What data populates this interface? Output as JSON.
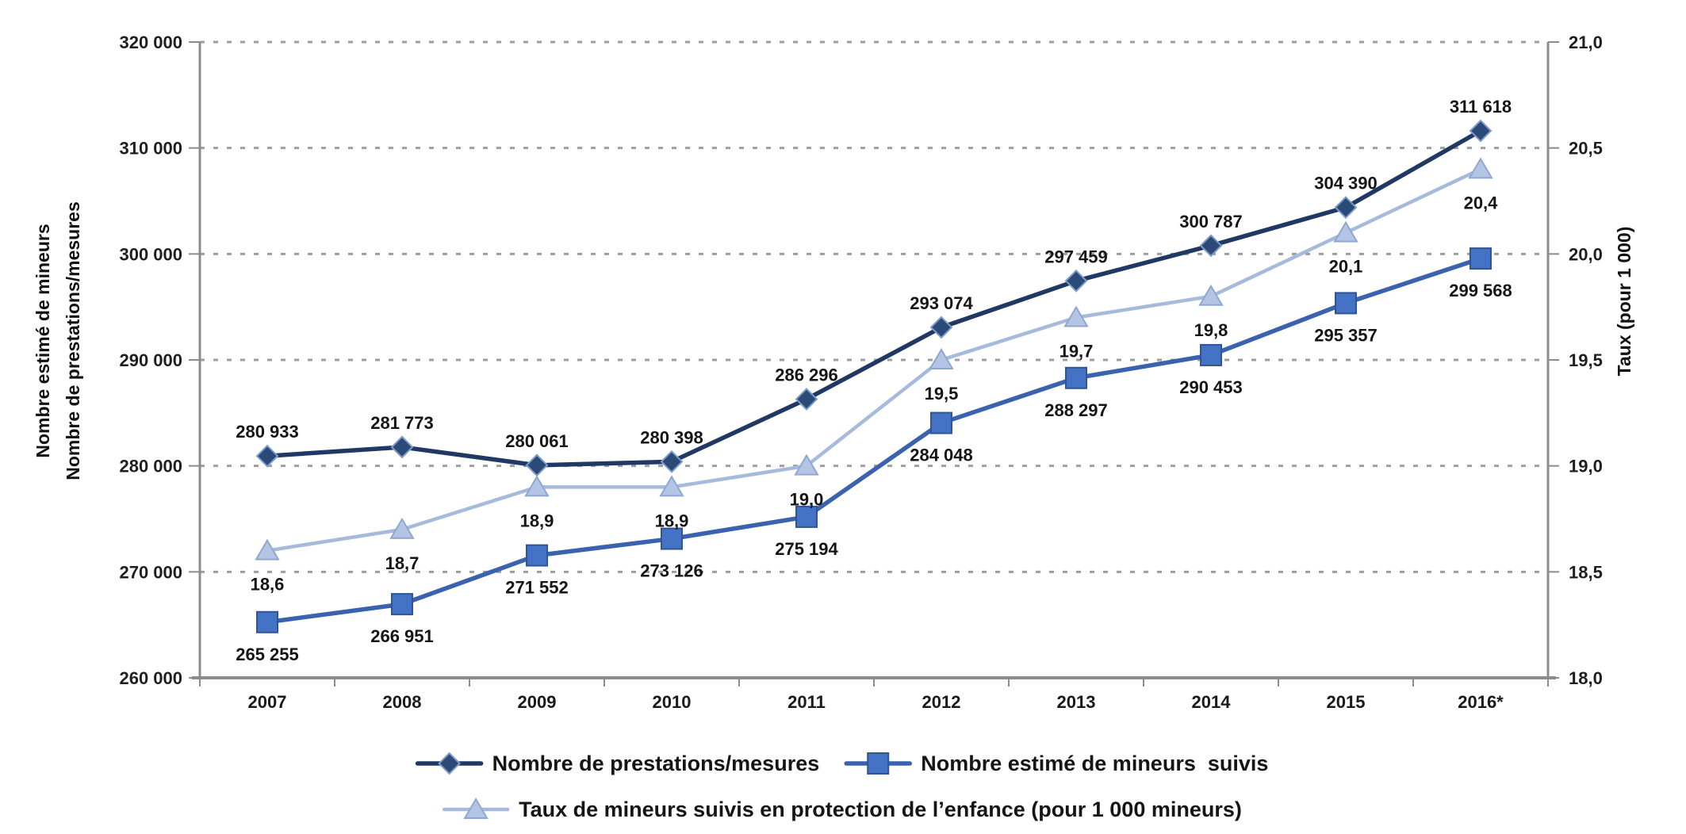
{
  "chart_data": {
    "type": "line",
    "categories": [
      "2007",
      "2008",
      "2009",
      "2010",
      "2011",
      "2012",
      "2013",
      "2014",
      "2015",
      "2016*"
    ],
    "series": [
      {
        "name": "Nombre de prestations/mesures",
        "axis": "left",
        "marker": "diamond",
        "line_color": "#1F3864",
        "marker_fill": "#2B4A78",
        "marker_stroke": "#7E9CC9",
        "values": [
          280933,
          281773,
          280061,
          280398,
          286296,
          293074,
          297459,
          300787,
          304390,
          311618
        ],
        "labels": [
          "280 933",
          "281 773",
          "280 061",
          "280 398",
          "286 296",
          "293 074",
          "297 459",
          "300 787",
          "304 390",
          "311 618"
        ],
        "label_dy": -23
      },
      {
        "name": "Nombre estimé de mineurs  suivis",
        "axis": "left",
        "marker": "square",
        "line_color": "#3A62AE",
        "marker_fill": "#4472C4",
        "marker_stroke": "#2F5597",
        "values": [
          265255,
          266951,
          271552,
          273126,
          275194,
          284048,
          288297,
          290453,
          295357,
          299568
        ],
        "labels": [
          "265 255",
          "266 951",
          "271 552",
          "273 126",
          "275 194",
          "284 048",
          "288 297",
          "290 453",
          "295 357",
          "299 568"
        ],
        "label_dy": 48
      },
      {
        "name": "Taux de mineurs suivis en protection de l’enfance (pour 1 000 mineurs)",
        "axis": "right",
        "marker": "triangle",
        "line_color": "#A6BADC",
        "marker_fill": "#B3C4E4",
        "marker_stroke": "#8FA8D0",
        "values": [
          18.6,
          18.7,
          18.9,
          18.9,
          19.0,
          19.5,
          19.7,
          19.8,
          20.1,
          20.4
        ],
        "labels": [
          "18,6",
          "18,7",
          "18,9",
          "18,9",
          "19,0",
          "19,5",
          "19,7",
          "19,8",
          "20,1",
          "20,4"
        ],
        "label_dy": 50
      }
    ],
    "left_axis": {
      "min": 260000,
      "max": 320000,
      "step": 10000,
      "tick_labels": [
        "320 000",
        "310 000",
        "300 000",
        "290 000",
        "280 000",
        "270 000",
        "260 000"
      ],
      "title_line1": "Nombre estimé de mineurs",
      "title_line2": "Nombre de prestations/mesures"
    },
    "right_axis": {
      "min": 18.0,
      "max": 21.0,
      "step": 0.5,
      "tick_labels": [
        "21,0",
        "20,5",
        "20,0",
        "19,5",
        "19,0",
        "18,5",
        "18,0"
      ],
      "title": "Taux (pour 1 000)"
    },
    "grid": "horizontal-dashed",
    "legend_position": "bottom",
    "legend_rows": [
      [
        0,
        1
      ],
      [
        2
      ]
    ],
    "colors": {
      "gridline": "#9E9E9E",
      "axis_line": "#8C8C8C",
      "text": "#151515"
    }
  }
}
